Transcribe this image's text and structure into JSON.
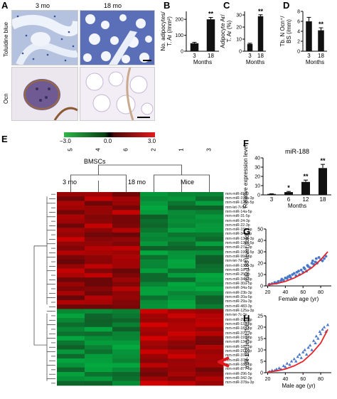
{
  "panels": {
    "A": "A",
    "B": "B",
    "C": "C",
    "D": "D",
    "E": "E",
    "F": "F",
    "G": "G",
    "H": "H"
  },
  "panelA": {
    "col_3mo": "3 mo",
    "col_18mo": "18 mo",
    "row_toluidine": "Toluidine blue",
    "row_ocn": "Ocn"
  },
  "panelE": {
    "legend_min": "−3.0",
    "legend_mid": "0.0",
    "legend_max": "3.0",
    "sample_ids": [
      "5",
      "4",
      "6",
      "2",
      "1",
      "3"
    ],
    "bmscs_label": "BMSCs",
    "group_3mo": "3 mo",
    "group_18mo": "18 mo",
    "mice_label": "Mice",
    "mirnas": [
      "mm-miR-8100",
      "mm-miR-199a-3p",
      "mm-miR-125b-5p",
      "mm-let-7i-5p",
      "mm-miR-14a-5p",
      "mm-miR-31-5p",
      "mm-miR-24-3p",
      "mm-miR-22-3p",
      "mm-miR-15b-5p",
      "mm-miR-34c-5p",
      "mm-miR-130b-3p",
      "mm-miR-125a-5p",
      "mm-miR-27a-3p",
      "mm-miR-199b-5p",
      "mm-miR-99a-5p",
      "mm-let-7d-5p",
      "mm-miR-130b-3p",
      "mm-miR-18-5p",
      "mm-miR-25-3p",
      "mm-miR-34b-5p",
      "mm-miR-30a-5p",
      "mm-miR-34a-5p",
      "mm-miR-23b-3p",
      "mm-miR-20a-5p",
      "mm-miR-29a-3p",
      "mm-miR-483-3p",
      "mm-miR-125a-3p",
      "mm-let-7c-3p",
      "mm-miR-290-3p",
      "mm-miR-132-3p",
      "mm-miR-183-5p",
      "mm-miR-370-3p",
      "mm-miR-191-3p",
      "mm-miR-134-5p",
      "mm-miR-182-5p",
      "mm-miR-211-3p",
      "mm-miR-378d",
      "mm-miR-378b",
      "mm-miR-188-5p",
      "mm-miR-877-5p",
      "mm-miR-296-5p",
      "mm-miR-342-3p",
      "mm-miR-378a-3p"
    ]
  },
  "chart_data": [
    {
      "panel": "B",
      "type": "bar",
      "categories": [
        "3",
        "18"
      ],
      "values": [
        50,
        200
      ],
      "errors": [
        6,
        12
      ],
      "ylabel": "No. adipocytes/ T. Ar (/mm²)",
      "xlabel": "Months",
      "yticks": [
        "0",
        "100",
        "200"
      ],
      "ylim": [
        0,
        250
      ],
      "sig": [
        "",
        "**"
      ]
    },
    {
      "panel": "C",
      "type": "bar",
      "categories": [
        "3",
        "18"
      ],
      "values": [
        6,
        29
      ],
      "errors": [
        0.6,
        1.2
      ],
      "ylabel": "Adipocyte Ar/ T. Ar (%)",
      "xlabel": "Months",
      "yticks": [
        "0",
        "10",
        "20",
        "30"
      ],
      "ylim": [
        0,
        33
      ],
      "sig": [
        "",
        "**"
      ]
    },
    {
      "panel": "D",
      "type": "bar",
      "categories": [
        "3",
        "18"
      ],
      "values": [
        6,
        4.2
      ],
      "errors": [
        0.8,
        0.5
      ],
      "ylabel": "Tb. N Ocn⁺/ BS (/mm)",
      "xlabel": "Months",
      "yticks": [
        "0",
        "2",
        "4",
        "6",
        "8"
      ],
      "ylim": [
        0,
        8
      ],
      "sig": [
        "",
        "**"
      ]
    },
    {
      "panel": "F",
      "type": "bar",
      "title": "miR-188",
      "categories": [
        "3",
        "6",
        "12",
        "18"
      ],
      "values": [
        1,
        3,
        14,
        29
      ],
      "errors": [
        0.2,
        0.7,
        2,
        4
      ],
      "ylabel": "Relative expression level",
      "xlabel": "Months",
      "yticks": [
        "0",
        "10",
        "20",
        "30",
        "40"
      ],
      "ylim": [
        0,
        40
      ],
      "sig": [
        "",
        "*",
        "**",
        "**"
      ]
    },
    {
      "panel": "G",
      "type": "scatter",
      "xlabel": "Female age (yr)",
      "ylabel": "miR-188 level (fold)",
      "xticks": [
        "20",
        "40",
        "60",
        "80"
      ],
      "yticks": [
        "0",
        "10",
        "20",
        "30",
        "40",
        "50"
      ],
      "xlim": [
        18,
        92
      ],
      "ylim": [
        0,
        50
      ],
      "marker": "circle",
      "points": [
        [
          22,
          1.5
        ],
        [
          25,
          2
        ],
        [
          28,
          3
        ],
        [
          30,
          2.5
        ],
        [
          32,
          4
        ],
        [
          35,
          4.5
        ],
        [
          36,
          6
        ],
        [
          38,
          5
        ],
        [
          40,
          7
        ],
        [
          42,
          6.5
        ],
        [
          43,
          8
        ],
        [
          45,
          9
        ],
        [
          46,
          7.5
        ],
        [
          48,
          10
        ],
        [
          50,
          11
        ],
        [
          52,
          9
        ],
        [
          53,
          12
        ],
        [
          55,
          13
        ],
        [
          56,
          10
        ],
        [
          58,
          14
        ],
        [
          60,
          12
        ],
        [
          61,
          16
        ],
        [
          62,
          15
        ],
        [
          64,
          13
        ],
        [
          65,
          18
        ],
        [
          66,
          17
        ],
        [
          68,
          16
        ],
        [
          70,
          20
        ],
        [
          71,
          22
        ],
        [
          72,
          19
        ],
        [
          74,
          21
        ],
        [
          75,
          24
        ],
        [
          76,
          20
        ],
        [
          78,
          25
        ],
        [
          80,
          23
        ],
        [
          82,
          22
        ],
        [
          84,
          24
        ],
        [
          86,
          26
        ]
      ],
      "fit_x": [
        20,
        30,
        40,
        50,
        60,
        70,
        80,
        88
      ],
      "fit_y": [
        1,
        2,
        4,
        7,
        11,
        16,
        23,
        30
      ]
    },
    {
      "panel": "H",
      "type": "scatter",
      "xlabel": "Male age (yr)",
      "ylabel": "miR-188 level (fold)",
      "xticks": [
        "20",
        "40",
        "60",
        "80"
      ],
      "yticks": [
        "0",
        "5",
        "10",
        "15",
        "20",
        "25"
      ],
      "xlim": [
        18,
        92
      ],
      "ylim": [
        0,
        25
      ],
      "marker": "triangle",
      "points": [
        [
          22,
          0.5
        ],
        [
          25,
          1
        ],
        [
          28,
          1
        ],
        [
          30,
          1.5
        ],
        [
          33,
          2
        ],
        [
          35,
          1.5
        ],
        [
          38,
          3
        ],
        [
          40,
          2.5
        ],
        [
          42,
          4
        ],
        [
          45,
          3.5
        ],
        [
          47,
          5
        ],
        [
          50,
          6
        ],
        [
          52,
          5
        ],
        [
          54,
          7
        ],
        [
          56,
          8
        ],
        [
          58,
          6.5
        ],
        [
          60,
          9
        ],
        [
          62,
          10
        ],
        [
          64,
          8
        ],
        [
          66,
          11
        ],
        [
          68,
          12
        ],
        [
          70,
          10
        ],
        [
          72,
          14
        ],
        [
          74,
          13
        ],
        [
          75,
          16
        ],
        [
          77,
          15
        ],
        [
          79,
          18
        ],
        [
          80,
          17
        ],
        [
          82,
          19
        ],
        [
          84,
          20
        ],
        [
          86,
          18
        ],
        [
          88,
          21
        ]
      ],
      "fit_x": [
        20,
        30,
        40,
        50,
        60,
        70,
        80,
        88
      ],
      "fit_y": [
        0.3,
        0.8,
        1.6,
        3,
        5,
        8.5,
        13,
        19
      ]
    }
  ],
  "colors": {
    "bar": "#111111",
    "fit": "#e8232a",
    "points": "#4a78c8",
    "arrow": "#e01a1f"
  }
}
